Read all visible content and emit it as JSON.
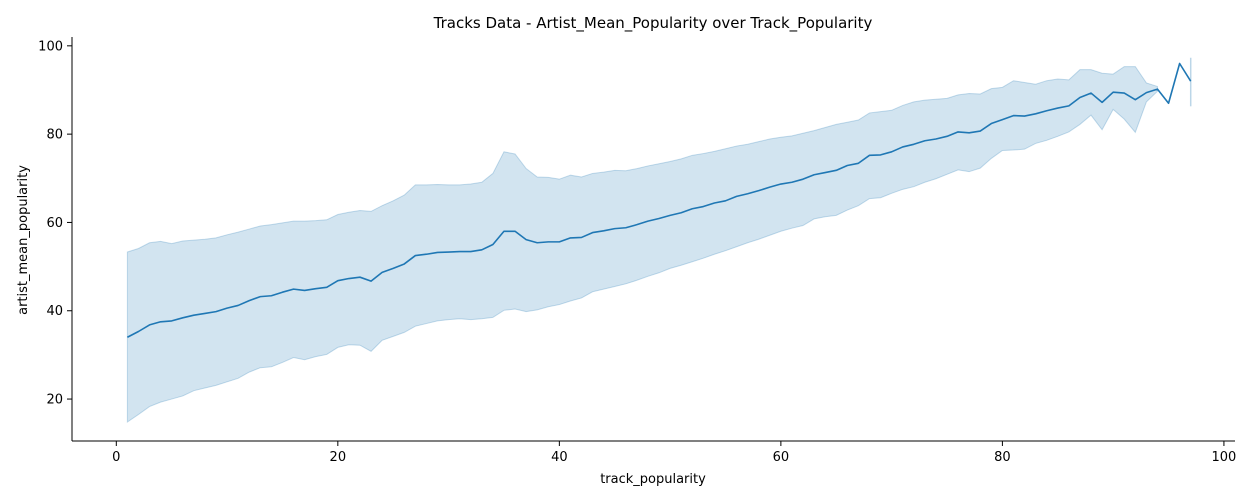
{
  "chart_data": {
    "type": "line",
    "title": "Tracks Data - Artist_Mean_Popularity over Track_Popularity",
    "xlabel": "track_popularity",
    "ylabel": "artist_mean_popularity",
    "xlim": [
      -4,
      101
    ],
    "ylim": [
      10.5,
      102
    ],
    "xticks": [
      0,
      20,
      40,
      60,
      80,
      100
    ],
    "yticks": [
      20,
      40,
      60,
      80,
      100
    ],
    "grid": false,
    "colors": {
      "line": "#1f77b4",
      "band": "#1f77b4"
    },
    "series": [
      {
        "x": [
          1,
          2,
          3,
          4,
          5,
          6,
          7,
          8,
          9,
          10,
          11,
          12,
          13,
          14,
          15,
          16,
          17,
          18,
          19,
          20,
          21,
          22,
          23,
          24,
          25,
          26,
          27,
          28,
          29,
          30,
          31,
          32,
          33,
          34,
          35,
          36,
          37,
          38,
          39,
          40,
          41,
          42,
          43,
          44,
          45,
          46,
          47,
          48,
          49,
          50,
          51,
          52,
          53,
          54,
          55,
          56,
          57,
          58,
          59,
          60,
          61,
          62,
          63,
          64,
          65,
          66,
          67,
          68,
          69,
          70,
          71,
          72,
          73,
          74,
          75,
          76,
          77,
          78,
          79,
          80,
          81,
          82,
          83,
          84,
          85,
          86,
          87,
          88,
          89,
          90,
          91,
          92,
          93,
          94,
          95,
          96,
          97
        ],
        "y": [
          34.0,
          35.3,
          36.8,
          37.5,
          37.7,
          38.4,
          39.0,
          39.4,
          39.8,
          40.6,
          41.2,
          42.3,
          43.2,
          43.4,
          44.2,
          44.9,
          44.6,
          45.0,
          45.3,
          46.8,
          47.3,
          47.6,
          46.7,
          48.7,
          49.6,
          50.6,
          52.5,
          52.8,
          53.2,
          53.3,
          53.4,
          53.4,
          53.8,
          55.0,
          58.0,
          58.0,
          56.1,
          55.4,
          55.6,
          55.6,
          56.5,
          56.6,
          57.7,
          58.1,
          58.6,
          58.8,
          59.5,
          60.3,
          60.9,
          61.6,
          62.2,
          63.1,
          63.6,
          64.4,
          64.9,
          65.9,
          66.5,
          67.2,
          68.0,
          68.7,
          69.1,
          69.8,
          70.8,
          71.3,
          71.8,
          72.9,
          73.4,
          75.2,
          75.3,
          76.0,
          77.1,
          77.7,
          78.5,
          78.9,
          79.5,
          80.5,
          80.3,
          80.7,
          82.4,
          83.3,
          84.2,
          84.1,
          84.6,
          85.3,
          85.9,
          86.4,
          88.3,
          89.3,
          87.2,
          89.5,
          89.3,
          87.8,
          89.4,
          90.2,
          87.0,
          96.0,
          92.0
        ],
        "ci_low": [
          14.8,
          16.5,
          18.3,
          19.3,
          20.0,
          20.7,
          21.9,
          22.5,
          23.1,
          23.9,
          24.7,
          26.1,
          27.1,
          27.3,
          28.3,
          29.4,
          28.9,
          29.6,
          30.1,
          31.7,
          32.3,
          32.2,
          30.8,
          33.3,
          34.2,
          35.1,
          36.5,
          37.1,
          37.7,
          38.0,
          38.2,
          38.0,
          38.2,
          38.5,
          40.1,
          40.4,
          39.8,
          40.2,
          40.9,
          41.4,
          42.2,
          42.9,
          44.3,
          44.9,
          45.5,
          46.1,
          46.9,
          47.8,
          48.6,
          49.6,
          50.3,
          51.1,
          51.9,
          52.8,
          53.6,
          54.5,
          55.4,
          56.2,
          57.1,
          58.0,
          58.7,
          59.3,
          60.8,
          61.3,
          61.6,
          62.8,
          63.8,
          65.4,
          65.6,
          66.6,
          67.5,
          68.1,
          69.1,
          69.9,
          70.9,
          71.9,
          71.5,
          72.3,
          74.5,
          76.3,
          76.4,
          76.6,
          77.9,
          78.6,
          79.5,
          80.5,
          82.2,
          84.3,
          81.0,
          85.6,
          83.4,
          80.4,
          87.3,
          89.7,
          null,
          null,
          86.3
        ],
        "ci_high": [
          53.3,
          54.1,
          55.4,
          55.7,
          55.2,
          55.8,
          56.0,
          56.2,
          56.5,
          57.2,
          57.8,
          58.5,
          59.2,
          59.5,
          59.9,
          60.3,
          60.3,
          60.4,
          60.6,
          61.8,
          62.3,
          62.7,
          62.5,
          63.8,
          64.9,
          66.2,
          68.5,
          68.5,
          68.6,
          68.5,
          68.5,
          68.7,
          69.1,
          71.1,
          76.0,
          75.5,
          72.2,
          70.3,
          70.2,
          69.8,
          70.7,
          70.3,
          71.1,
          71.4,
          71.8,
          71.7,
          72.2,
          72.8,
          73.3,
          73.8,
          74.4,
          75.2,
          75.6,
          76.1,
          76.7,
          77.3,
          77.7,
          78.3,
          78.9,
          79.3,
          79.6,
          80.2,
          80.8,
          81.5,
          82.2,
          82.7,
          83.2,
          84.8,
          85.1,
          85.4,
          86.5,
          87.3,
          87.7,
          87.9,
          88.1,
          88.9,
          89.2,
          89.1,
          90.3,
          90.6,
          92.1,
          91.7,
          91.3,
          92.1,
          92.5,
          92.3,
          94.6,
          94.6,
          93.8,
          93.6,
          95.3,
          95.3,
          91.6,
          90.8,
          null,
          null,
          97.3
        ]
      }
    ]
  }
}
